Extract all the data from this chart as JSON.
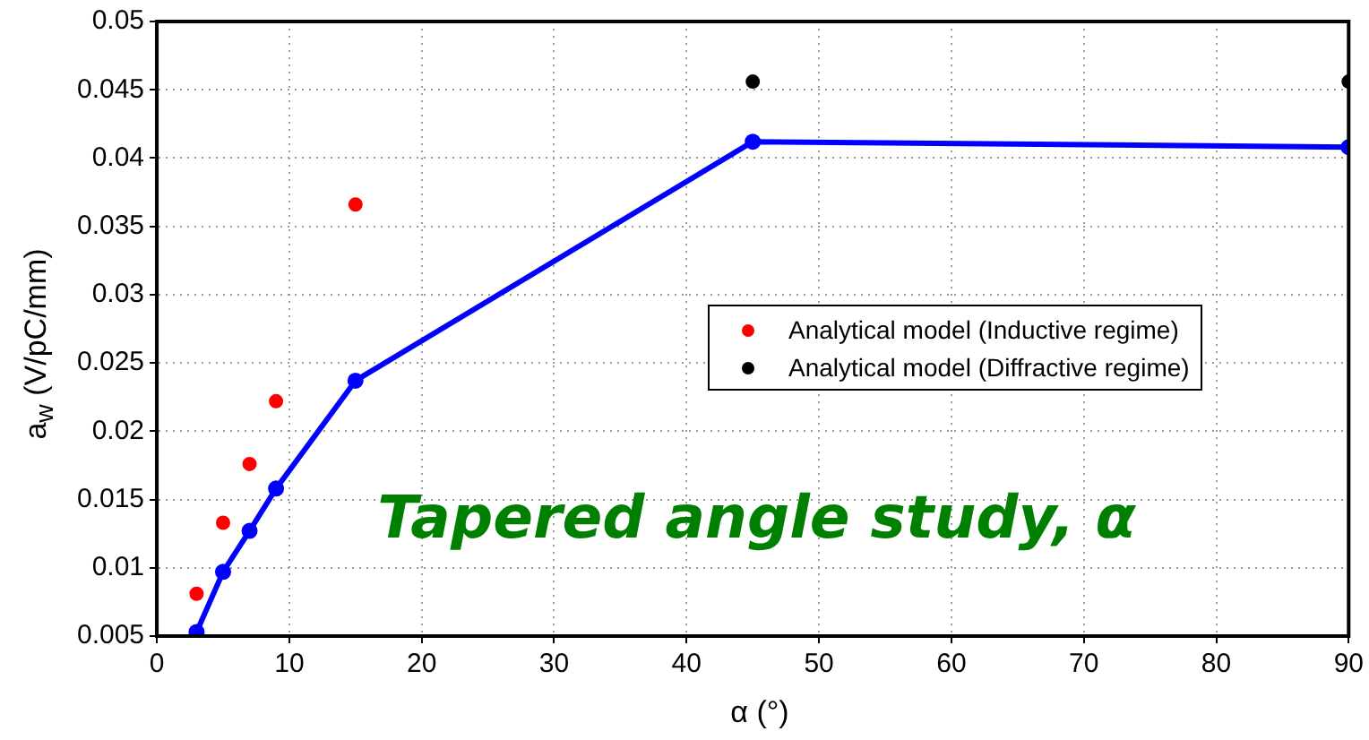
{
  "chart_data": {
    "type": "line",
    "xlabel": "α (°)",
    "ylabel": "a$_{w}$ (V/pC/mm)",
    "annotations": [
      "Tapered angle study, α"
    ],
    "xlim": [
      0,
      90
    ],
    "xticks": [
      0,
      10,
      20,
      30,
      40,
      50,
      60,
      70,
      80,
      90
    ],
    "ylim": [
      0.005,
      0.05
    ],
    "yticks": [
      0.005,
      0.01,
      0.015,
      0.02,
      0.025,
      0.03,
      0.035,
      0.04,
      0.045,
      0.05
    ],
    "grid": true,
    "legend": "right",
    "marker": "circle",
    "line_style": "solid",
    "series": [
      {
        "type": "line",
        "color": "#0000ff",
        "x": [
          3,
          5,
          7,
          9,
          15,
          45,
          90
        ],
        "values": [
          0.0053,
          0.0097,
          0.0127,
          0.0158,
          0.0237,
          0.0412,
          0.0408
        ]
      },
      {
        "type": "scatter",
        "name": "Analytical model (Inductive regime)",
        "color": "#ff0000",
        "x": [
          3,
          5,
          7,
          9,
          15
        ],
        "values": [
          0.0081,
          0.0133,
          0.0176,
          0.0222,
          0.0366
        ]
      },
      {
        "type": "scatter",
        "name": "Analytical model (Diffractive regime)",
        "color": "#000000",
        "x": [
          45,
          90
        ],
        "values": [
          0.0456,
          0.0456
        ]
      }
    ]
  }
}
